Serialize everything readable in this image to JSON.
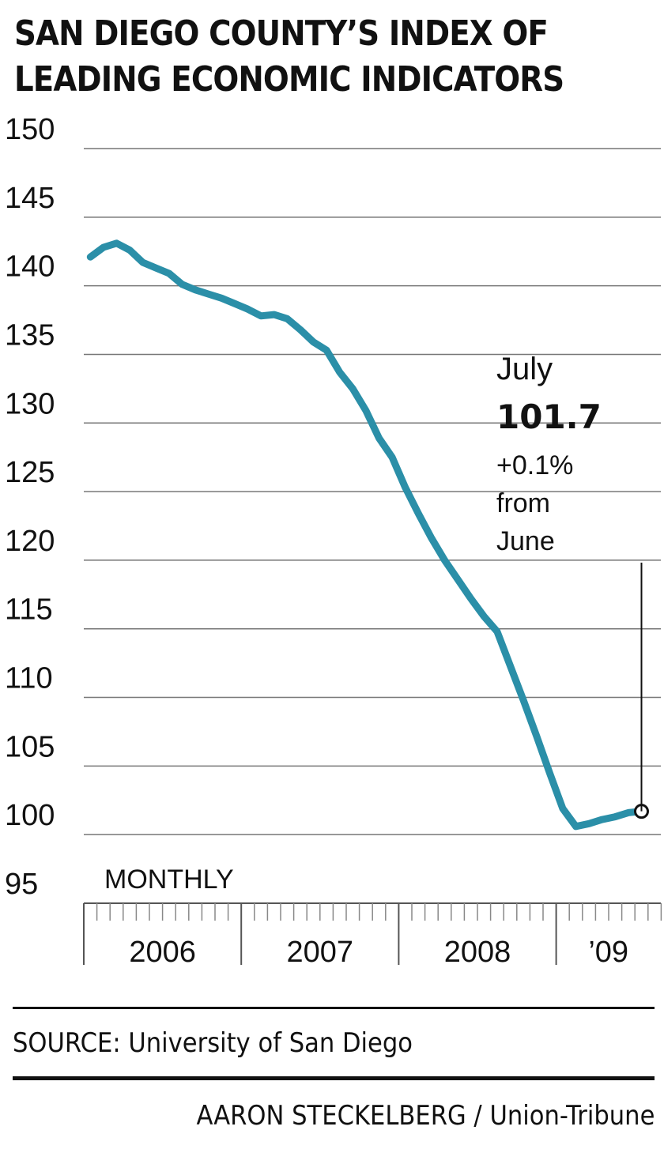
{
  "title_line1": "SAN DIEGO COUNTY’S INDEX OF",
  "title_line2": "LEADING ECONOMIC INDICATORS",
  "source": "SOURCE: University of San Diego",
  "credit": "AARON STECKELBERG / Union-Tribune",
  "chart_data": {
    "type": "line",
    "title": "SAN DIEGO COUNTY’S INDEX OF LEADING ECONOMIC INDICATORS",
    "frequency_label": "MONTHLY",
    "ylim": [
      95,
      150
    ],
    "yticks": [
      150,
      145,
      140,
      135,
      130,
      125,
      120,
      115,
      110,
      105,
      100,
      95
    ],
    "x_year_labels": [
      "2006",
      "2007",
      "2008",
      "’09"
    ],
    "grid": true,
    "line_color": "#2b8fa8",
    "series": [
      {
        "x": [
          "2006-01",
          "2006-02",
          "2006-03",
          "2006-04",
          "2006-05",
          "2006-06",
          "2006-07",
          "2006-08",
          "2006-09",
          "2006-10",
          "2006-11",
          "2006-12",
          "2007-01",
          "2007-02",
          "2007-03",
          "2007-04",
          "2007-05",
          "2007-06",
          "2007-07",
          "2007-08",
          "2007-09",
          "2007-10",
          "2007-11",
          "2007-12",
          "2008-01",
          "2008-02",
          "2008-03",
          "2008-04",
          "2008-05",
          "2008-06",
          "2008-07",
          "2008-08",
          "2008-09",
          "2008-10",
          "2008-11",
          "2008-12",
          "2009-01",
          "2009-02",
          "2009-03",
          "2009-04",
          "2009-05",
          "2009-06",
          "2009-07"
        ],
        "values": [
          142.1,
          142.8,
          143.1,
          142.6,
          141.7,
          141.3,
          140.9,
          140.1,
          139.7,
          139.4,
          139.1,
          138.7,
          138.3,
          137.8,
          137.9,
          137.6,
          136.8,
          135.9,
          135.3,
          133.7,
          132.5,
          130.9,
          128.9,
          127.5,
          125.3,
          123.4,
          121.6,
          120.0,
          118.6,
          117.2,
          115.9,
          114.8,
          112.3,
          109.8,
          107.2,
          104.5,
          101.9,
          100.6,
          100.8,
          101.1,
          101.3,
          101.6,
          101.7
        ]
      }
    ],
    "annotation": {
      "month": "July",
      "value": "101.7",
      "change_lines": [
        "+0.1%",
        "from",
        "June"
      ]
    }
  }
}
